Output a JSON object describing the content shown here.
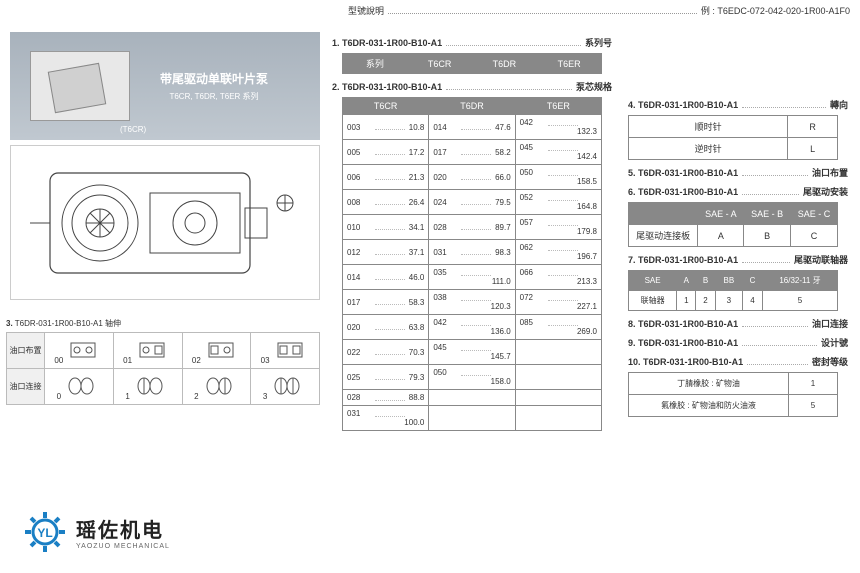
{
  "header": {
    "left": "型號說明",
    "right": "例 : T6EDC-072-042-020-1R00-A1F0"
  },
  "imgbox": {
    "title": "带尾驱动单联叶片泵",
    "sub": "T6CR, T6DR, T6ER 系列",
    "tag": "(T6CR)"
  },
  "sec1": {
    "num": "1.",
    "code": "T6DR-031-1R00-B10-A1",
    "label": "系列号"
  },
  "tbl1": {
    "h0": "系列",
    "c": [
      "T6CR",
      "T6DR",
      "T6ER"
    ]
  },
  "sec2": {
    "num": "2.",
    "code": "T6DR-031-1R00-B10-A1",
    "label": "泵芯规格"
  },
  "tbl2": {
    "headers": [
      "T6CR",
      "T6DR",
      "T6ER"
    ],
    "rows": [
      [
        [
          "003",
          "10.8"
        ],
        [
          "014",
          "47.6"
        ],
        [
          "042",
          "132.3"
        ]
      ],
      [
        [
          "005",
          "17.2"
        ],
        [
          "017",
          "58.2"
        ],
        [
          "045",
          "142.4"
        ]
      ],
      [
        [
          "006",
          "21.3"
        ],
        [
          "020",
          "66.0"
        ],
        [
          "050",
          "158.5"
        ]
      ],
      [
        [
          "008",
          "26.4"
        ],
        [
          "024",
          "79.5"
        ],
        [
          "052",
          "164.8"
        ]
      ],
      [
        [
          "010",
          "34.1"
        ],
        [
          "028",
          "89.7"
        ],
        [
          "057",
          "179.8"
        ]
      ],
      [
        [
          "012",
          "37.1"
        ],
        [
          "031",
          "98.3"
        ],
        [
          "062",
          "196.7"
        ]
      ],
      [
        [
          "014",
          "46.0"
        ],
        [
          "035",
          "111.0"
        ],
        [
          "066",
          "213.3"
        ]
      ],
      [
        [
          "017",
          "58.3"
        ],
        [
          "038",
          "120.3"
        ],
        [
          "072",
          "227.1"
        ]
      ],
      [
        [
          "020",
          "63.8"
        ],
        [
          "042",
          "136.0"
        ],
        [
          "085",
          "269.0"
        ]
      ],
      [
        [
          "022",
          "70.3"
        ],
        [
          "045",
          "145.7"
        ],
        [
          "",
          ""
        ]
      ],
      [
        [
          "025",
          "79.3"
        ],
        [
          "050",
          "158.0"
        ],
        [
          "",
          ""
        ]
      ],
      [
        [
          "028",
          "88.8"
        ],
        [
          "",
          ""
        ],
        [
          "",
          ""
        ]
      ],
      [
        [
          "031",
          "100.0"
        ],
        [
          "",
          ""
        ],
        [
          "",
          ""
        ]
      ]
    ]
  },
  "sec3": {
    "num": "3.",
    "code": "T6DR-031-1R00-B10-A1",
    "label": "轴伸"
  },
  "grid3": {
    "row1_label": "油口布置",
    "row1_tags": [
      "00",
      "01",
      "02",
      "03"
    ],
    "row2_label": "油口连接",
    "row2_tags": [
      "0",
      "1",
      "2",
      "3"
    ]
  },
  "logo": {
    "cn": "瑶佐机电",
    "en": "YAOZUO MECHANICAL"
  },
  "sec4": {
    "num": "4.",
    "code": "T6DR-031-1R00-B10-A1",
    "label": "轉向"
  },
  "tbl4": [
    [
      "顺时针",
      "R"
    ],
    [
      "逆时针",
      "L"
    ]
  ],
  "sec5": {
    "num": "5.",
    "code": "T6DR-031-1R00-B10-A1",
    "label": "油口布置"
  },
  "sec6": {
    "num": "6.",
    "code": "T6DR-031-1R00-B10-A1",
    "label": "尾驱动安装"
  },
  "tbl6": {
    "headers": [
      "",
      "SAE - A",
      "SAE - B",
      "SAE - C"
    ],
    "row": [
      "尾驱动连接板",
      "A",
      "B",
      "C"
    ]
  },
  "sec7": {
    "num": "7.",
    "code": "T6DR-031-1R00-B10-A1",
    "label": "尾驱动联轴器"
  },
  "tbl7": {
    "headers": [
      "SAE",
      "A",
      "B",
      "BB",
      "C",
      "16/32-11 牙"
    ],
    "row": [
      "联轴器",
      "1",
      "2",
      "3",
      "4",
      "5"
    ]
  },
  "sec8": {
    "num": "8.",
    "code": "T6DR-031-1R00-B10-A1",
    "label": "油口连接"
  },
  "sec9": {
    "num": "9.",
    "code": "T6DR-031-1R00-B10-A1",
    "label": "设计號"
  },
  "sec10": {
    "num": "10.",
    "code": "T6DR-031-1R00-B10-A1",
    "label": "密封等级"
  },
  "tbl10": [
    [
      "丁腈橡胶 : 矿物油",
      "1"
    ],
    [
      "氟橡胶 : 矿物油和防火油液",
      "5"
    ]
  ]
}
